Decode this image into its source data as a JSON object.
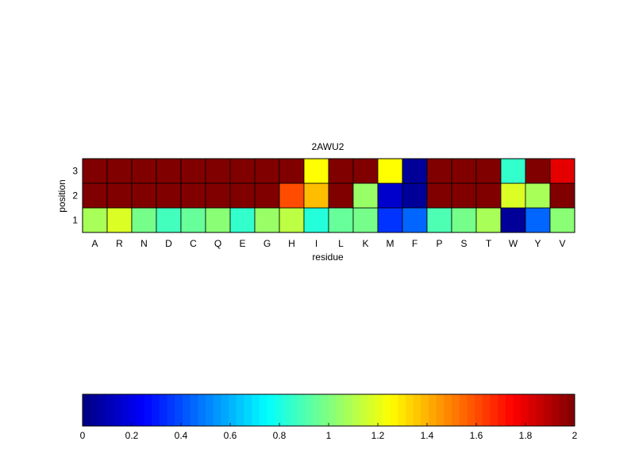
{
  "chart_data": {
    "type": "heatmap",
    "title": "2AWU2",
    "xlabel": "residue",
    "ylabel": "position",
    "x": [
      "A",
      "R",
      "N",
      "D",
      "C",
      "Q",
      "E",
      "G",
      "H",
      "I",
      "L",
      "K",
      "M",
      "F",
      "P",
      "S",
      "T",
      "W",
      "Y",
      "V"
    ],
    "y": [
      "1",
      "2",
      "3"
    ],
    "values": [
      [
        1.08,
        1.18,
        0.98,
        0.88,
        0.95,
        1.02,
        0.85,
        1.05,
        1.12,
        0.82,
        0.95,
        0.98,
        0.35,
        0.45,
        0.9,
        0.98,
        1.08,
        0.05,
        0.45,
        1.02
      ],
      [
        2.0,
        2.0,
        2.0,
        2.0,
        2.0,
        2.0,
        2.0,
        2.0,
        1.6,
        1.38,
        2.0,
        1.05,
        0.15,
        0.05,
        2.0,
        2.0,
        2.0,
        1.18,
        1.08,
        2.0
      ],
      [
        2.0,
        2.0,
        2.0,
        2.0,
        2.0,
        2.0,
        2.0,
        2.0,
        2.0,
        1.25,
        2.0,
        2.0,
        1.25,
        0.05,
        2.0,
        2.0,
        2.0,
        0.85,
        2.0,
        1.8
      ]
    ],
    "colormap": "jet",
    "clim": [
      0,
      2
    ],
    "colorbar": {
      "location": "bottom",
      "ticks": [
        "0",
        "0.2",
        "0.4",
        "0.6",
        "0.8",
        "1",
        "1.2",
        "1.4",
        "1.6",
        "1.8",
        "2"
      ]
    }
  }
}
